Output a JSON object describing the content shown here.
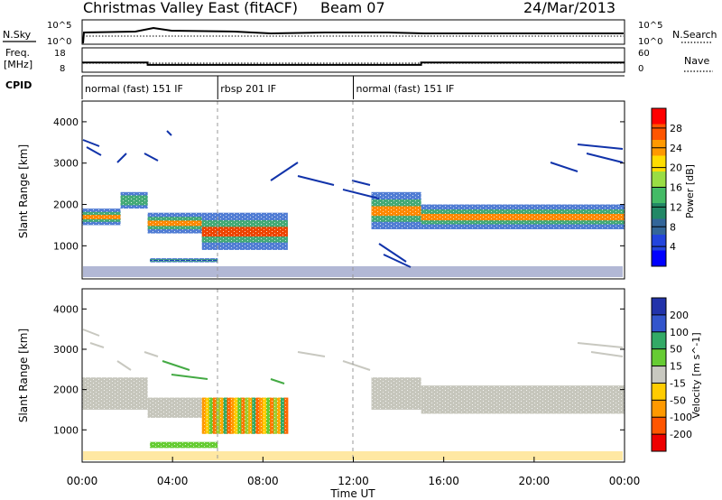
{
  "header": {
    "title": "Christmas Valley East (fitACF)",
    "beam": "Beam 07",
    "date": "24/Mar/2013"
  },
  "nsky_panel": {
    "label_left": "N.Sky",
    "label_right": "N.Search",
    "tick_hi": "10^5",
    "tick_lo": "10^0",
    "tick_hi_r": "10^5",
    "tick_lo_r": "10^0"
  },
  "freq_panel": {
    "label_left_1": "Freq.",
    "label_left_2": "[MHz]",
    "label_right": "Nave",
    "ytick_left": [
      "18",
      "8"
    ],
    "ytick_right": [
      "60",
      "0"
    ],
    "freq_mhz": [
      {
        "t": 0.0,
        "v": 12.0
      },
      {
        "t": 2.9,
        "v": 12.0
      },
      {
        "t": 2.9,
        "v": 11.0
      },
      {
        "t": 15.0,
        "v": 11.0
      },
      {
        "t": 15.0,
        "v": 12.0
      },
      {
        "t": 24.0,
        "v": 12.0
      }
    ]
  },
  "cpid": {
    "label": "CPID",
    "segments": [
      {
        "start": 0.0,
        "end": 6.0,
        "name": "normal (fast) 151 IF"
      },
      {
        "start": 6.0,
        "end": 12.0,
        "name": "rbsp 201 IF"
      },
      {
        "start": 12.0,
        "end": 24.0,
        "name": "normal (fast) 151 IF"
      }
    ]
  },
  "chart_data": [
    {
      "type": "heatmap",
      "name": "power",
      "ylabel": "Slant Range [km]",
      "ylim": [
        200,
        4500
      ],
      "xlim": [
        0,
        24
      ],
      "yticks": [
        "1000",
        "2000",
        "3000",
        "4000"
      ],
      "colorbar": {
        "label": "Power [dB]",
        "ticks": [
          "28",
          "24",
          "20",
          "16",
          "12",
          "8",
          "4"
        ],
        "colors": [
          "#ff0000",
          "#ff5500",
          "#ff9900",
          "#ffdd00",
          "#99dd44",
          "#44bb66",
          "#228866",
          "#336699",
          "#2244dd",
          "#0000ff"
        ]
      },
      "bands": [
        {
          "t0": 0.0,
          "t1": 1.7,
          "r0": 1500,
          "r1": 1900,
          "level": "high"
        },
        {
          "t0": 1.7,
          "t1": 2.9,
          "r0": 1900,
          "r1": 2300,
          "level": "mid"
        },
        {
          "t0": 2.9,
          "t1": 5.3,
          "r0": 1300,
          "r1": 1800,
          "level": "high"
        },
        {
          "t0": 5.3,
          "t1": 9.1,
          "r0": 900,
          "r1": 1800,
          "level": "peak"
        },
        {
          "t0": 3.0,
          "t1": 6.0,
          "r0": 600,
          "r1": 700,
          "level": "low"
        },
        {
          "t0": 12.8,
          "t1": 15.0,
          "r0": 1400,
          "r1": 2300,
          "level": "high"
        },
        {
          "t0": 15.0,
          "t1": 24.0,
          "r0": 1400,
          "r1": 2000,
          "level": "high"
        }
      ]
    },
    {
      "type": "heatmap",
      "name": "velocity",
      "xlabel": "Time UT",
      "ylabel": "Slant Range [km]",
      "ylim": [
        200,
        4500
      ],
      "xlim": [
        0,
        24
      ],
      "yticks": [
        "1000",
        "2000",
        "3000",
        "4000"
      ],
      "xticks": [
        "00:00",
        "04:00",
        "08:00",
        "12:00",
        "16:00",
        "20:00",
        "00:00"
      ],
      "colorbar": {
        "label": "Velocity [m s^-1]",
        "ticks": [
          "200",
          "100",
          "50",
          "15",
          "-15",
          "-50",
          "-100",
          "-200"
        ],
        "colors": [
          "#2233aa",
          "#3355cc",
          "#33aa66",
          "#66cc33",
          "#c8c8c0",
          "#ffcc00",
          "#ff9900",
          "#ff5500",
          "#ee0000"
        ]
      },
      "bands": [
        {
          "t0": 0.0,
          "t1": 2.9,
          "r0": 1500,
          "r1": 2300,
          "level": "ground"
        },
        {
          "t0": 2.9,
          "t1": 5.3,
          "r0": 1300,
          "r1": 1800,
          "level": "ground"
        },
        {
          "t0": 5.3,
          "t1": 9.1,
          "r0": 900,
          "r1": 1800,
          "level": "mixed"
        },
        {
          "t0": 3.0,
          "t1": 6.0,
          "r0": 550,
          "r1": 700,
          "level": "green"
        },
        {
          "t0": 12.8,
          "t1": 15.0,
          "r0": 1500,
          "r1": 2300,
          "level": "ground"
        },
        {
          "t0": 15.0,
          "t1": 24.0,
          "r0": 1400,
          "r1": 2100,
          "level": "ground"
        }
      ]
    }
  ]
}
